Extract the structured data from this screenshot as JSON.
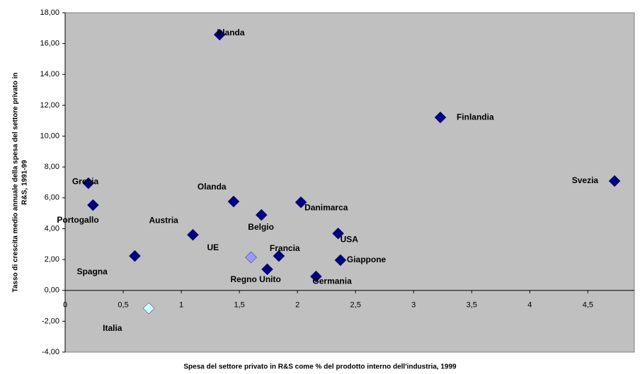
{
  "chart_data": {
    "type": "scatter",
    "ylabel": [
      "Tasso di crescita medio annuale della spesa del settore privato in",
      "R&S, 1991-99"
    ],
    "xlabel": "Spesa del settore privato in R&S come % del prodotto interno dell'industria, 1999",
    "labels": [
      "Irlanda",
      "Finlandia",
      "Svezia",
      "Grecia",
      "Portogallo",
      "Olanda",
      "Danimarca",
      "Belgio",
      "Austria",
      "USA",
      "UE",
      "Francia",
      "Spagna",
      "Giappone",
      "Regno Unito",
      "Germania",
      "Italia"
    ],
    "x": [
      1.33,
      3.23,
      4.73,
      0.2,
      0.24,
      1.45,
      2.03,
      1.69,
      1.1,
      2.35,
      1.6,
      1.84,
      0.6,
      2.37,
      1.74,
      2.16,
      0.72
    ],
    "values": [
      16.58,
      11.21,
      7.09,
      6.95,
      5.53,
      5.76,
      5.71,
      4.89,
      3.6,
      3.69,
      2.14,
      2.23,
      2.23,
      1.96,
      1.37,
      0.9,
      -1.16
    ],
    "colors": [
      "#000080",
      "#000080",
      "#000080",
      "#000080",
      "#000080",
      "#000080",
      "#000080",
      "#000080",
      "#000080",
      "#000080",
      "#9999ff",
      "#000080",
      "#000080",
      "#000080",
      "#000080",
      "#000080",
      "#ccffff"
    ],
    "xlim": [
      0,
      4.9
    ],
    "ylim": [
      -4,
      18
    ],
    "xticks": [
      0,
      {
        "value": 0.5,
        "label": "0,5"
      },
      1,
      {
        "value": 1.5,
        "label": "1,5"
      },
      2,
      {
        "value": 2.5,
        "label": "2,5"
      },
      3,
      {
        "value": 3.5,
        "label": "3,5"
      },
      4,
      {
        "value": 4.5,
        "label": "4,5"
      }
    ],
    "yticks": [
      {
        "value": -4,
        "label": "-4,00"
      },
      {
        "value": -2,
        "label": "-2,00"
      },
      {
        "value": 0,
        "label": "0,00"
      },
      {
        "value": 2,
        "label": "2,00"
      },
      {
        "value": 4,
        "label": "4,00"
      },
      {
        "value": 6,
        "label": "6,00"
      },
      {
        "value": 8,
        "label": "8,00"
      },
      {
        "value": 10,
        "label": "10,00"
      },
      {
        "value": 12,
        "label": "12,00"
      },
      {
        "value": 14,
        "label": "14,00"
      },
      {
        "value": 16,
        "label": "16,00"
      },
      {
        "value": 18,
        "label": "18,00"
      }
    ],
    "plot_background": "#c0c0c0"
  }
}
